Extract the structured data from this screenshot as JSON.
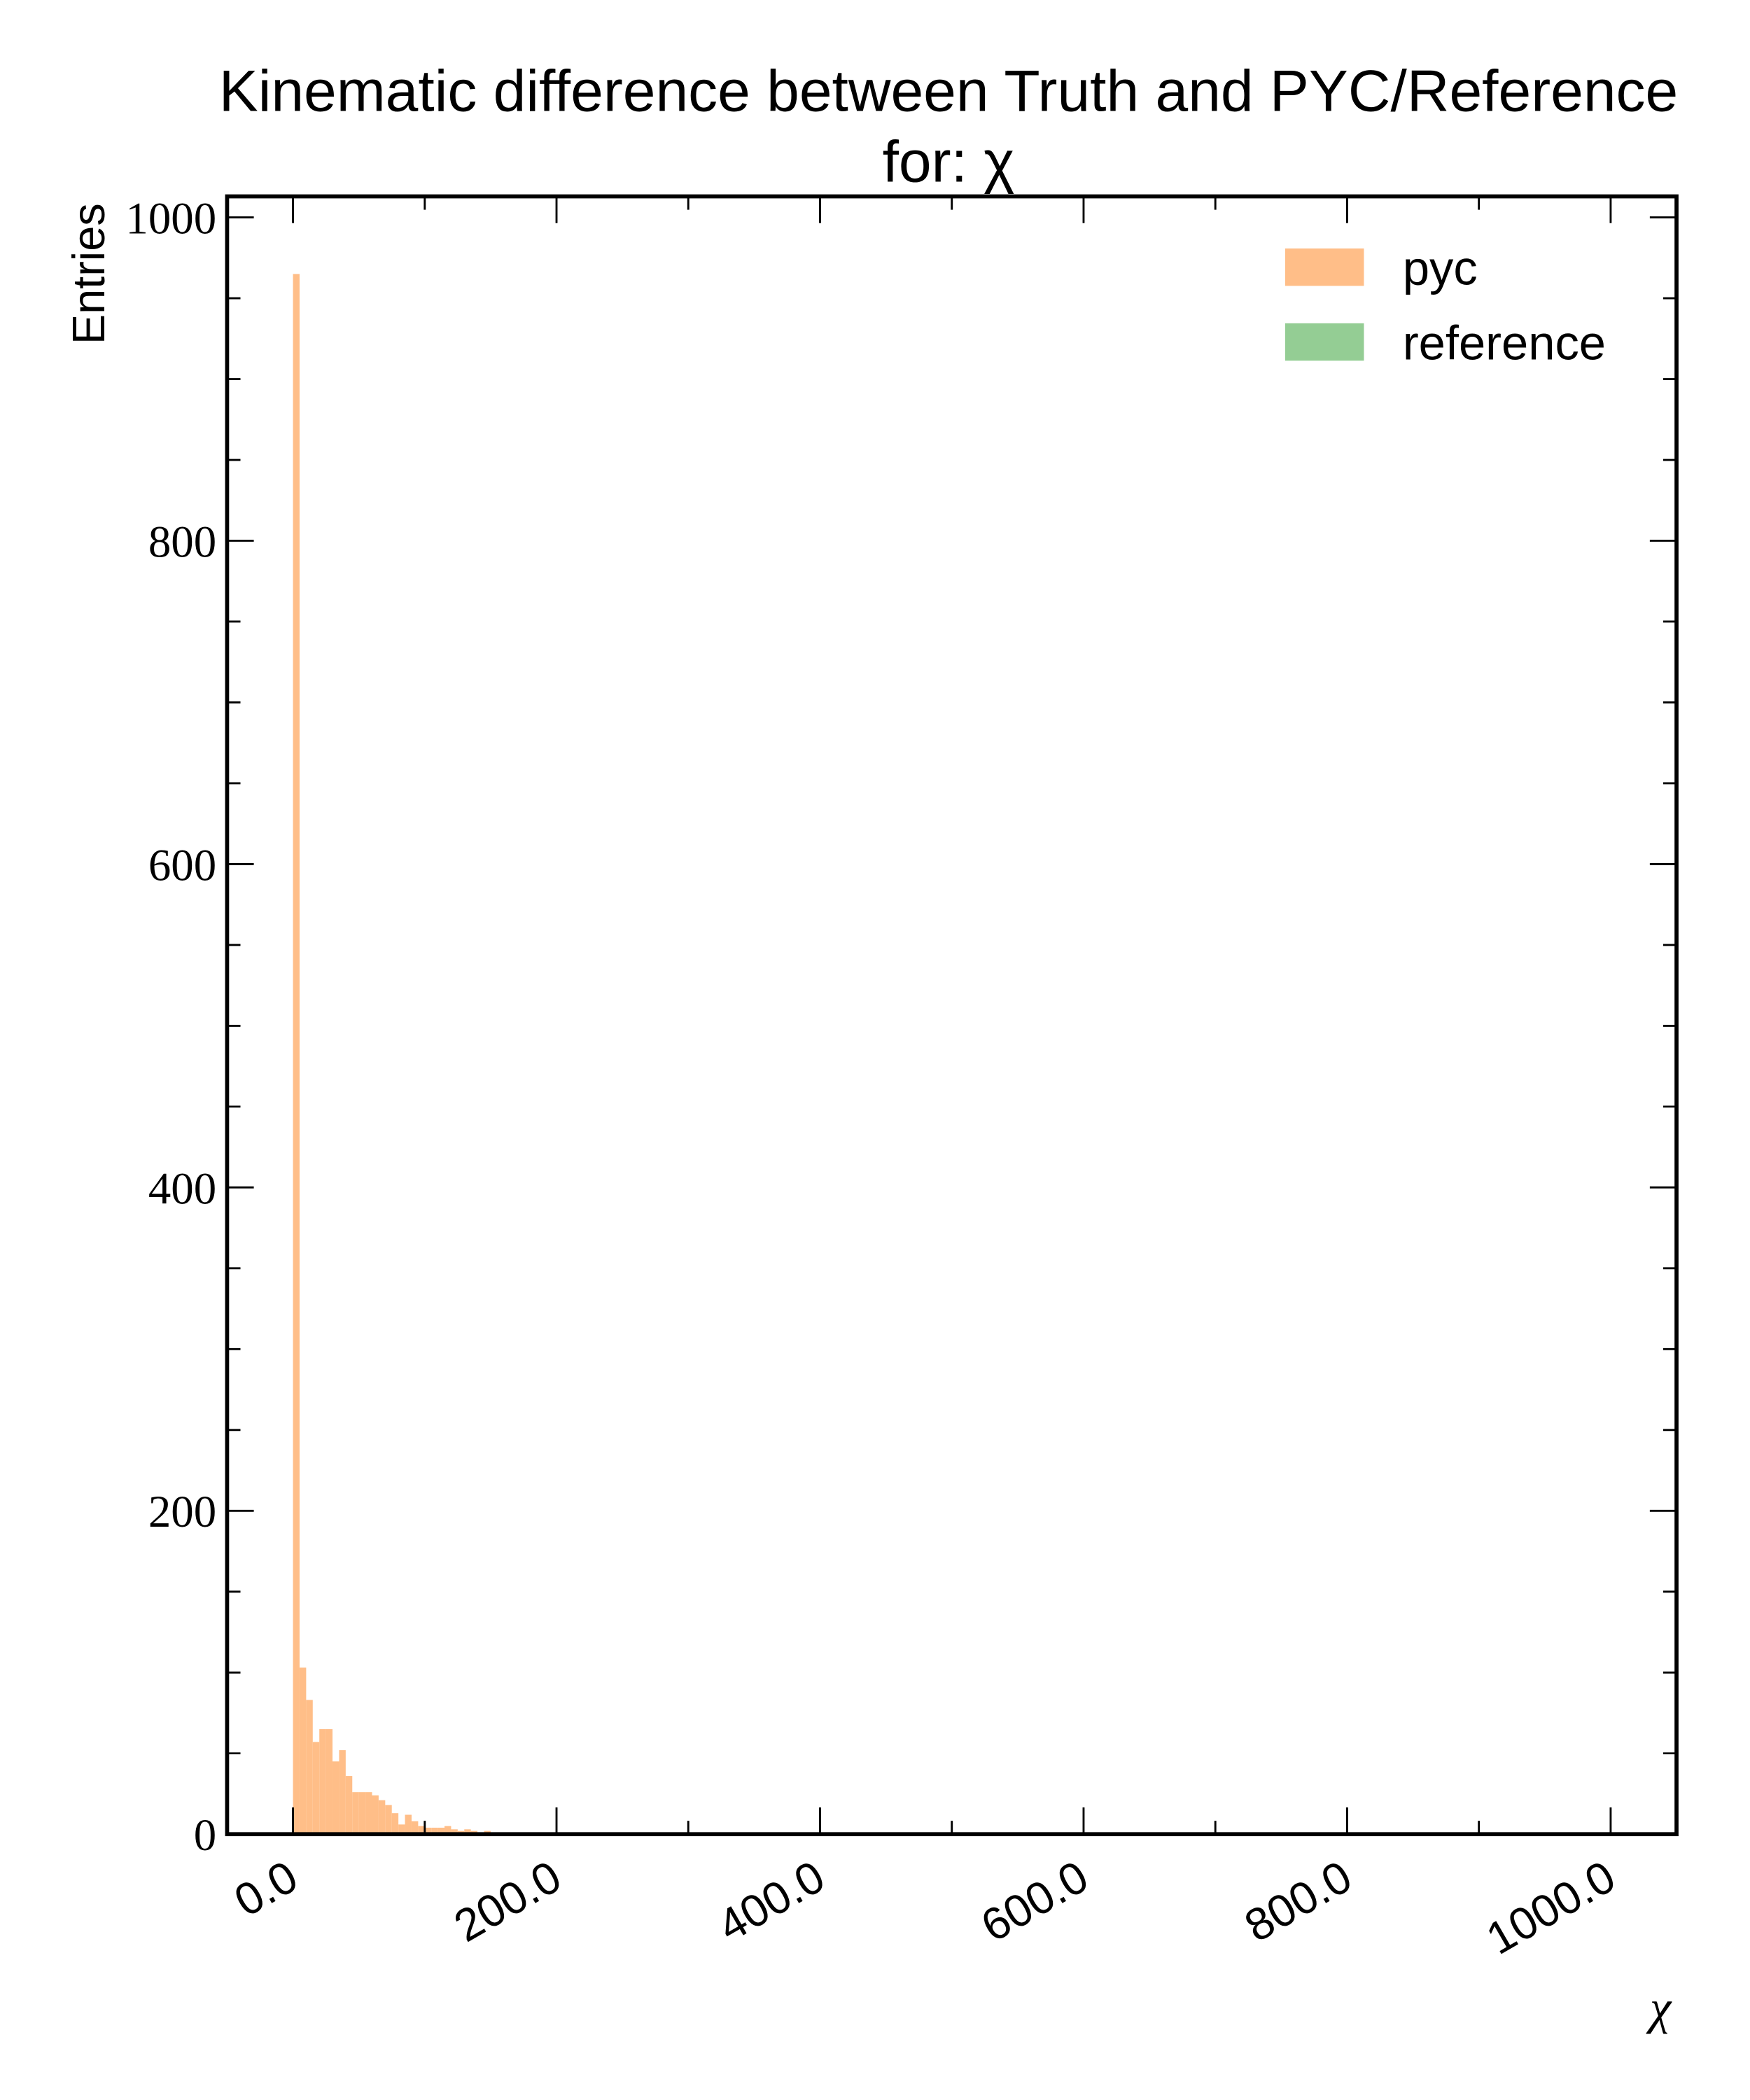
{
  "chart_data": {
    "type": "histogram",
    "title": [
      "Kinematic difference between Truth and PYC/Reference",
      "for: χ"
    ],
    "xlabel": "χ",
    "ylabel": "Entries",
    "bins": [
      0,
      5,
      10,
      15,
      20,
      25,
      30,
      35,
      40,
      45,
      50,
      55,
      60,
      65,
      70,
      75,
      80,
      85,
      90,
      95,
      100,
      105,
      110,
      115,
      120,
      125,
      130,
      135,
      140,
      145,
      150,
      155,
      160,
      165,
      170,
      175,
      180,
      185,
      190,
      195,
      200
    ],
    "series": [
      {
        "name": "pyc",
        "color": "#ffbe88",
        "values": [
          965,
          103,
          83,
          57,
          65,
          65,
          45,
          52,
          36,
          26,
          26,
          26,
          24,
          21,
          18,
          13,
          6,
          12,
          8,
          5,
          4,
          4,
          4,
          5,
          3,
          2,
          3,
          2,
          1,
          2,
          1,
          1,
          0,
          0,
          0,
          0,
          0,
          0,
          0,
          0
        ]
      },
      {
        "name": "reference",
        "color": "#94cd94",
        "values": [
          0,
          0,
          0,
          0,
          0,
          0,
          0,
          0,
          0,
          0,
          0,
          0,
          0,
          0,
          0,
          0,
          0,
          0,
          0,
          0,
          0,
          0,
          0,
          0,
          0,
          0,
          0,
          0,
          0,
          0,
          0,
          0,
          0,
          0,
          0,
          0,
          0,
          0,
          0,
          0
        ]
      }
    ],
    "xlim": [
      -50,
      1050
    ],
    "ylim": [
      0,
      1013
    ],
    "xticks": [
      {
        "value": 0,
        "label": "0.0"
      },
      {
        "value": 200,
        "label": "200.0"
      },
      {
        "value": 400,
        "label": "400.0"
      },
      {
        "value": 600,
        "label": "600.0"
      },
      {
        "value": 800,
        "label": "800.0"
      },
      {
        "value": 1000,
        "label": "1000.0"
      }
    ],
    "yticks": [
      0,
      200,
      400,
      600,
      800,
      1000
    ],
    "xminorticks": [
      100,
      300,
      500,
      700,
      900
    ],
    "yminorticks": [
      50,
      100,
      150,
      250,
      300,
      350,
      450,
      500,
      550,
      650,
      700,
      750,
      850,
      900,
      950
    ],
    "legend": "upper right"
  }
}
